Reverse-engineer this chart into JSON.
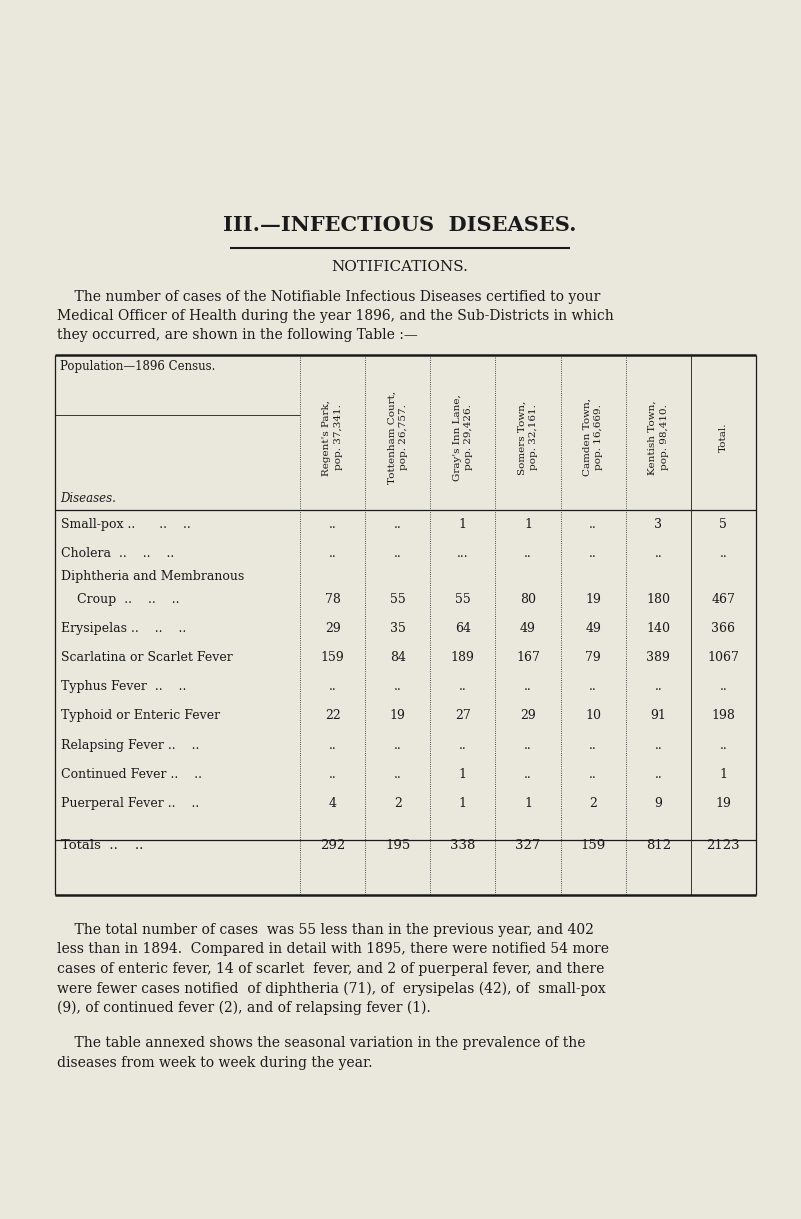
{
  "bg_color": "#eae7dc",
  "text_color": "#1a1a1a",
  "title": "III.—INFECTIOUS  DISEASES.",
  "subtitle": "NOTIFICATIONS.",
  "intro_text_1": "    The number of cases of the Notifiable Infectious Diseases certified to your",
  "intro_text_2": "Medical Officer of Health during the year 1896, and the Sub-Districts in which",
  "intro_text_3": "they occurred, are shown in the following Table :—",
  "col_headers": [
    "Regent's Park,\npop. 37,341.",
    "Tottenham Court,\npop. 26,757.",
    "Gray's Inn Lane,\npop. 29,426.",
    "Somers Town,\npop. 32,161.",
    "Camden Town,\npop. 16,669.",
    "Kentish Town,\npop. 98,410.",
    "Total."
  ],
  "diseases": [
    "Small-pox ..      ..    ..",
    "Cholera  ..    ..    ..",
    "Diphtheria and Membranous",
    "    Croup  ..    ..    ..",
    "Erysipelas ..    ..    ..",
    "Scarlatina or Scarlet Fever",
    "Typhus Fever  ..    ..",
    "Typhoid or Enteric Fever",
    "Relapsing Fever ..    ..",
    "Continued Fever ..    ..",
    "Puerperal Fever ..    ..",
    "Totals  ..    .."
  ],
  "table_data": [
    [
      "..",
      "..",
      "1",
      "1",
      "..",
      "3",
      "5"
    ],
    [
      "..",
      "..",
      "...",
      "..",
      "..",
      "..",
      ".."
    ],
    [
      "",
      "",
      "",
      "",
      "",
      "",
      ""
    ],
    [
      "78",
      "55",
      "55",
      "80",
      "19",
      "180",
      "467"
    ],
    [
      "29",
      "35",
      "64",
      "49",
      "49",
      "140",
      "366"
    ],
    [
      "159",
      "84",
      "189",
      "167",
      "79",
      "389",
      "1067"
    ],
    [
      "..",
      "..",
      "..",
      "..",
      "..",
      "..",
      ".."
    ],
    [
      "22",
      "19",
      "27",
      "29",
      "10",
      "91",
      "198"
    ],
    [
      "..",
      "..",
      "..",
      "..",
      "..",
      "..",
      ".."
    ],
    [
      "..",
      "..",
      "1",
      "..",
      "..",
      "..",
      "1"
    ],
    [
      "4",
      "2",
      "1",
      "1",
      "2",
      "9",
      "19"
    ],
    [
      "292",
      "195",
      "338",
      "327",
      "159",
      "812",
      "2123"
    ]
  ],
  "is_totals": [
    false,
    false,
    false,
    false,
    false,
    false,
    false,
    false,
    false,
    false,
    false,
    true
  ],
  "is_spacer": [
    false,
    false,
    true,
    false,
    false,
    false,
    false,
    false,
    false,
    false,
    false,
    false
  ],
  "footer1": "    The total number of cases  was 55 less than in the previous year, and 402",
  "footer2": "less than in 1894.  Compared in detail with 1895, there were notified 54 more",
  "footer3": "cases of enteric fever, 14 of scarlet  fever, and 2 of puerperal fever, and there",
  "footer4": "were fewer cases notified  of diphtheria (71), of  erysipelas (42), of  small-pox",
  "footer5": "(9), of continued fever (2), and of relapsing fever (1).",
  "footer6": "    The table annexed shows the seasonal variation in the prevalence of the",
  "footer7": "diseases from week to week during the year."
}
